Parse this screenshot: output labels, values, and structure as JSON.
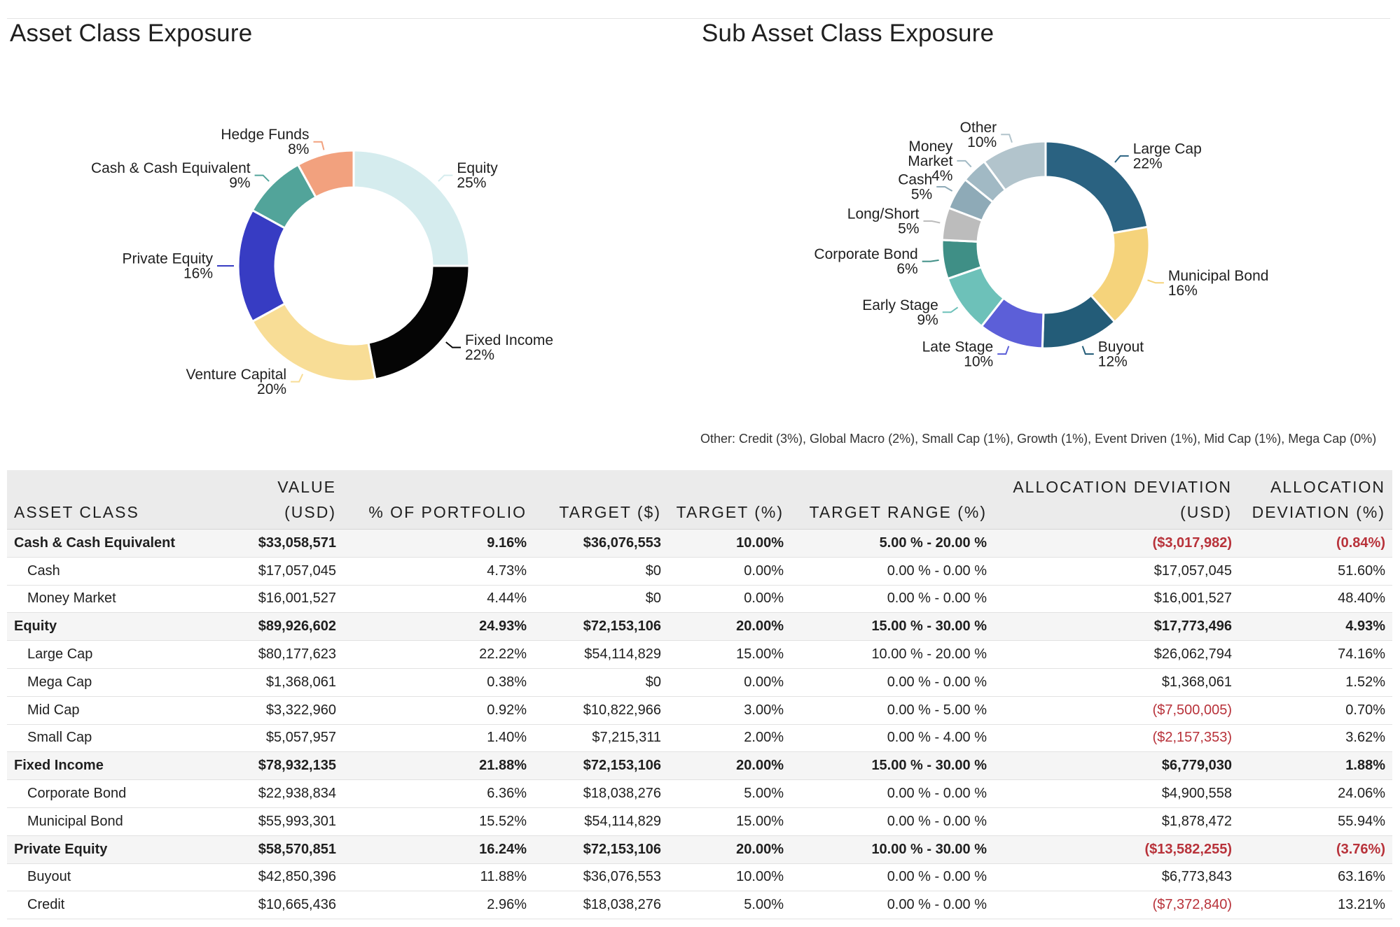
{
  "titles": {
    "asset": "Asset Class Exposure",
    "sub": "Sub Asset Class Exposure"
  },
  "other_note": "Other: Credit (3%), Global Macro (2%), Small Cap (1%), Growth (1%), Event Driven (1%), Mid Cap (1%), Mega Cap (0%)",
  "chart_data": [
    {
      "type": "pie",
      "donut": true,
      "title": "Asset Class Exposure",
      "slices": [
        {
          "label": "Equity",
          "value": 25,
          "pct_label": "25%",
          "color": "#d5ecee"
        },
        {
          "label": "Fixed Income",
          "value": 22,
          "pct_label": "22%",
          "color": "#050505"
        },
        {
          "label": "Venture Capital",
          "value": 20,
          "pct_label": "20%",
          "color": "#f8dd96"
        },
        {
          "label": "Private Equity",
          "value": 16,
          "pct_label": "16%",
          "color": "#373cc3"
        },
        {
          "label": "Cash & Cash Equivalent",
          "value": 9,
          "pct_label": "9%",
          "color": "#52a49a"
        },
        {
          "label": "Hedge Funds",
          "value": 8,
          "pct_label": "8%",
          "color": "#f2a17e"
        }
      ]
    },
    {
      "type": "pie",
      "donut": true,
      "title": "Sub Asset Class Exposure",
      "slices": [
        {
          "label": "Large Cap",
          "value": 22,
          "pct_label": "22%",
          "color": "#2a6281"
        },
        {
          "label": "Municipal Bond",
          "value": 16,
          "pct_label": "16%",
          "color": "#f5d37b"
        },
        {
          "label": "Buyout",
          "value": 12,
          "pct_label": "12%",
          "color": "#235c78"
        },
        {
          "label": "Late Stage",
          "value": 10,
          "pct_label": "10%",
          "color": "#5c5fd8"
        },
        {
          "label": "Early Stage",
          "value": 9,
          "pct_label": "9%",
          "color": "#6dc1b9"
        },
        {
          "label": "Corporate Bond",
          "value": 6,
          "pct_label": "6%",
          "color": "#3f8f86"
        },
        {
          "label": "Long/Short",
          "value": 5,
          "pct_label": "5%",
          "color": "#bcbcbc"
        },
        {
          "label": "Cash",
          "value": 5,
          "pct_label": "5%",
          "color": "#8eaab7"
        },
        {
          "label": "Money Market",
          "value": 4,
          "pct_label": "4%",
          "color": "#a1b9c4"
        },
        {
          "label": "Other",
          "value": 10,
          "pct_label": "10%",
          "color": "#b2c4cc"
        }
      ]
    }
  ],
  "table": {
    "headers": [
      [
        "",
        "ASSET CLASS"
      ],
      [
        "VALUE",
        "(USD)"
      ],
      [
        "",
        "% OF PORTFOLIO"
      ],
      [
        "",
        "TARGET ($)"
      ],
      [
        "",
        "TARGET (%)"
      ],
      [
        "",
        "TARGET RANGE (%)"
      ],
      [
        "ALLOCATION DEVIATION",
        "(USD)"
      ],
      [
        "ALLOCATION",
        "DEVIATION (%)"
      ]
    ],
    "rows": [
      {
        "level": "group",
        "cells": [
          "Cash & Cash Equivalent",
          "$33,058,571",
          "9.16%",
          "$36,076,553",
          "10.00%",
          "5.00 % - 20.00 %",
          "($3,017,982)",
          "(0.84%)"
        ]
      },
      {
        "level": "child",
        "cells": [
          "Cash",
          "$17,057,045",
          "4.73%",
          "$0",
          "0.00%",
          "0.00 % - 0.00 %",
          "$17,057,045",
          "51.60%"
        ]
      },
      {
        "level": "child",
        "cells": [
          "Money Market",
          "$16,001,527",
          "4.44%",
          "$0",
          "0.00%",
          "0.00 % - 0.00 %",
          "$16,001,527",
          "48.40%"
        ]
      },
      {
        "level": "group",
        "cells": [
          "Equity",
          "$89,926,602",
          "24.93%",
          "$72,153,106",
          "20.00%",
          "15.00 % - 30.00 %",
          "$17,773,496",
          "4.93%"
        ]
      },
      {
        "level": "child",
        "cells": [
          "Large Cap",
          "$80,177,623",
          "22.22%",
          "$54,114,829",
          "15.00%",
          "10.00 % - 20.00 %",
          "$26,062,794",
          "74.16%"
        ]
      },
      {
        "level": "child",
        "cells": [
          "Mega Cap",
          "$1,368,061",
          "0.38%",
          "$0",
          "0.00%",
          "0.00 % - 0.00 %",
          "$1,368,061",
          "1.52%"
        ]
      },
      {
        "level": "child",
        "cells": [
          "Mid Cap",
          "$3,322,960",
          "0.92%",
          "$10,822,966",
          "3.00%",
          "0.00 % - 5.00 %",
          "($7,500,005)",
          "0.70%"
        ]
      },
      {
        "level": "child",
        "cells": [
          "Small Cap",
          "$5,057,957",
          "1.40%",
          "$7,215,311",
          "2.00%",
          "0.00 % - 4.00 %",
          "($2,157,353)",
          "3.62%"
        ]
      },
      {
        "level": "group",
        "cells": [
          "Fixed Income",
          "$78,932,135",
          "21.88%",
          "$72,153,106",
          "20.00%",
          "15.00 % - 30.00 %",
          "$6,779,030",
          "1.88%"
        ]
      },
      {
        "level": "child",
        "cells": [
          "Corporate Bond",
          "$22,938,834",
          "6.36%",
          "$18,038,276",
          "5.00%",
          "0.00 % - 0.00 %",
          "$4,900,558",
          "24.06%"
        ]
      },
      {
        "level": "child",
        "cells": [
          "Municipal Bond",
          "$55,993,301",
          "15.52%",
          "$54,114,829",
          "15.00%",
          "0.00 % - 0.00 %",
          "$1,878,472",
          "55.94%"
        ]
      },
      {
        "level": "group",
        "cells": [
          "Private Equity",
          "$58,570,851",
          "16.24%",
          "$72,153,106",
          "20.00%",
          "10.00 % - 30.00 %",
          "($13,582,255)",
          "(3.76%)"
        ]
      },
      {
        "level": "child",
        "cells": [
          "Buyout",
          "$42,850,396",
          "11.88%",
          "$36,076,553",
          "10.00%",
          "0.00 % - 0.00 %",
          "$6,773,843",
          "63.16%"
        ]
      },
      {
        "level": "child",
        "cells": [
          "Credit",
          "$10,665,436",
          "2.96%",
          "$18,038,276",
          "5.00%",
          "0.00 % - 0.00 %",
          "($7,372,840)",
          "13.21%"
        ]
      }
    ]
  }
}
